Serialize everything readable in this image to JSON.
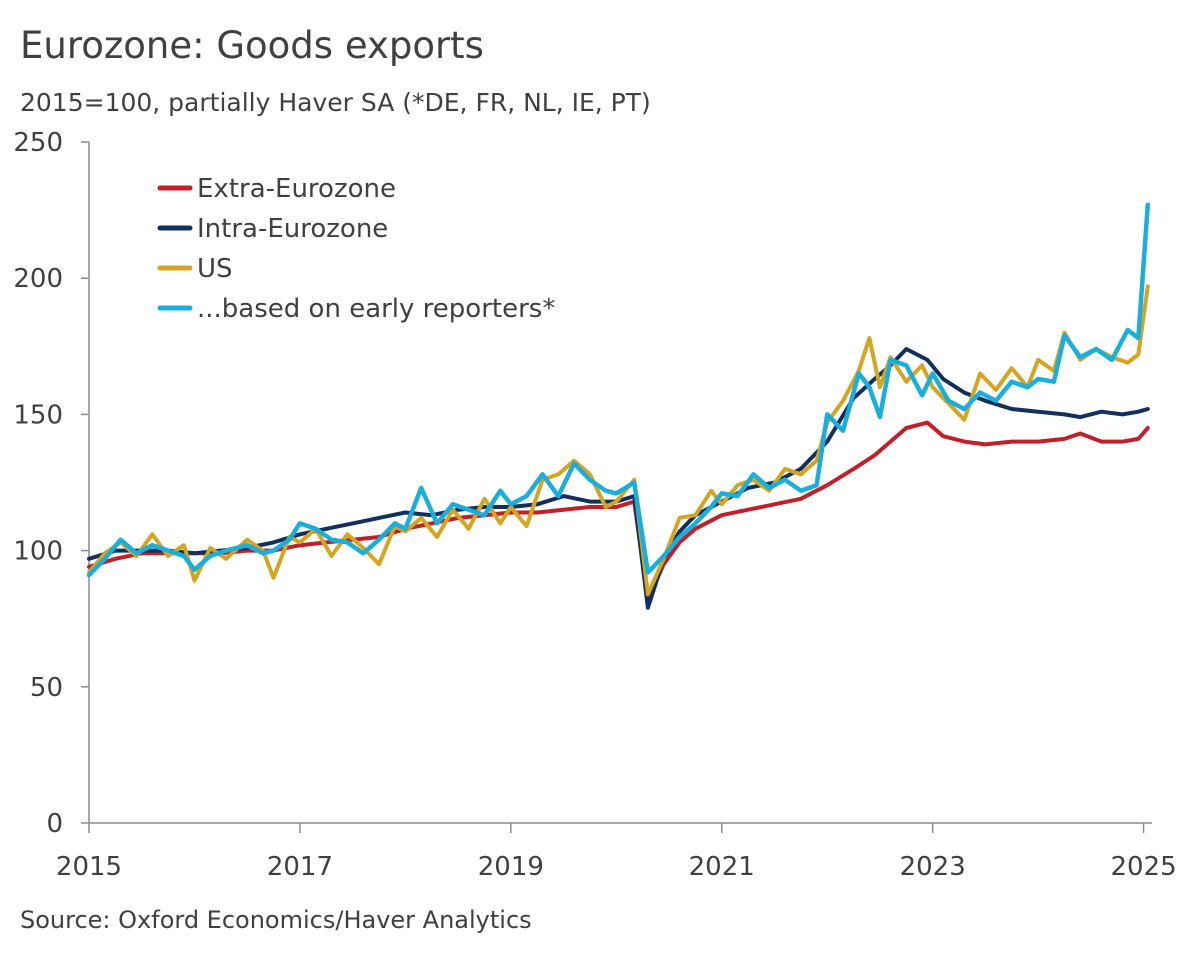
{
  "chart_data": {
    "type": "line",
    "title": "Eurozone: Goods exports",
    "subtitle": "2015=100, partially Haver SA (*DE, FR, NL, IE, PT)",
    "source": "Source: Oxford Economics/Haver Analytics",
    "xlabel": "",
    "ylabel": "",
    "xlim": [
      2015.0,
      2025.08
    ],
    "ylim": [
      0,
      250
    ],
    "y_ticks": [
      0,
      50,
      100,
      150,
      200,
      250
    ],
    "x_ticks": [
      2015,
      2017,
      2019,
      2021,
      2023,
      2025
    ],
    "x_tick_labels": [
      "2015",
      "2017",
      "2019",
      "2021",
      "2023",
      "2025"
    ],
    "grid": false,
    "legend_position": "top-left",
    "series": [
      {
        "name": "Extra-Eurozone",
        "color": "#C0202A",
        "points": [
          [
            2015.0,
            94
          ],
          [
            2015.25,
            97
          ],
          [
            2015.5,
            99
          ],
          [
            2015.75,
            99
          ],
          [
            2016.0,
            99
          ],
          [
            2016.25,
            99
          ],
          [
            2016.5,
            100
          ],
          [
            2016.75,
            100
          ],
          [
            2017.0,
            102
          ],
          [
            2017.25,
            103
          ],
          [
            2017.5,
            104
          ],
          [
            2017.75,
            105
          ],
          [
            2018.0,
            108
          ],
          [
            2018.25,
            110
          ],
          [
            2018.5,
            112
          ],
          [
            2018.75,
            113
          ],
          [
            2019.0,
            114
          ],
          [
            2019.25,
            114
          ],
          [
            2019.5,
            115
          ],
          [
            2019.75,
            116
          ],
          [
            2020.0,
            116
          ],
          [
            2020.17,
            118
          ],
          [
            2020.3,
            82
          ],
          [
            2020.45,
            95
          ],
          [
            2020.6,
            103
          ],
          [
            2020.75,
            108
          ],
          [
            2021.0,
            113
          ],
          [
            2021.25,
            115
          ],
          [
            2021.5,
            117
          ],
          [
            2021.75,
            119
          ],
          [
            2022.0,
            124
          ],
          [
            2022.25,
            130
          ],
          [
            2022.45,
            135
          ],
          [
            2022.6,
            140
          ],
          [
            2022.75,
            145
          ],
          [
            2022.95,
            147
          ],
          [
            2023.1,
            142
          ],
          [
            2023.3,
            140
          ],
          [
            2023.5,
            139
          ],
          [
            2023.75,
            140
          ],
          [
            2024.0,
            140
          ],
          [
            2024.25,
            141
          ],
          [
            2024.4,
            143
          ],
          [
            2024.6,
            140
          ],
          [
            2024.8,
            140
          ],
          [
            2024.95,
            141
          ],
          [
            2025.04,
            145
          ]
        ]
      },
      {
        "name": "Intra-Eurozone",
        "color": "#12305E",
        "points": [
          [
            2015.0,
            97
          ],
          [
            2015.25,
            100
          ],
          [
            2015.5,
            100
          ],
          [
            2015.75,
            100
          ],
          [
            2016.0,
            99
          ],
          [
            2016.25,
            100
          ],
          [
            2016.5,
            101
          ],
          [
            2016.75,
            103
          ],
          [
            2017.0,
            106
          ],
          [
            2017.25,
            108
          ],
          [
            2017.5,
            110
          ],
          [
            2017.75,
            112
          ],
          [
            2018.0,
            114
          ],
          [
            2018.25,
            113
          ],
          [
            2018.5,
            115
          ],
          [
            2018.75,
            116
          ],
          [
            2019.0,
            116
          ],
          [
            2019.25,
            117
          ],
          [
            2019.5,
            120
          ],
          [
            2019.75,
            118
          ],
          [
            2020.0,
            118
          ],
          [
            2020.17,
            120
          ],
          [
            2020.3,
            79
          ],
          [
            2020.45,
            97
          ],
          [
            2020.6,
            107
          ],
          [
            2020.75,
            113
          ],
          [
            2021.0,
            118
          ],
          [
            2021.25,
            123
          ],
          [
            2021.5,
            125
          ],
          [
            2021.75,
            130
          ],
          [
            2022.0,
            140
          ],
          [
            2022.25,
            156
          ],
          [
            2022.45,
            163
          ],
          [
            2022.6,
            168
          ],
          [
            2022.75,
            174
          ],
          [
            2022.95,
            170
          ],
          [
            2023.1,
            163
          ],
          [
            2023.3,
            158
          ],
          [
            2023.5,
            155
          ],
          [
            2023.75,
            152
          ],
          [
            2024.0,
            151
          ],
          [
            2024.25,
            150
          ],
          [
            2024.4,
            149
          ],
          [
            2024.6,
            151
          ],
          [
            2024.8,
            150
          ],
          [
            2024.95,
            151
          ],
          [
            2025.04,
            152
          ]
        ]
      },
      {
        "name": "US",
        "color": "#D4A520",
        "points": [
          [
            2015.0,
            92
          ],
          [
            2015.15,
            99
          ],
          [
            2015.3,
            103
          ],
          [
            2015.45,
            98
          ],
          [
            2015.6,
            106
          ],
          [
            2015.75,
            98
          ],
          [
            2015.9,
            102
          ],
          [
            2016.0,
            89
          ],
          [
            2016.15,
            101
          ],
          [
            2016.3,
            97
          ],
          [
            2016.5,
            104
          ],
          [
            2016.65,
            100
          ],
          [
            2016.75,
            90
          ],
          [
            2016.9,
            105
          ],
          [
            2017.0,
            103
          ],
          [
            2017.15,
            108
          ],
          [
            2017.3,
            98
          ],
          [
            2017.45,
            106
          ],
          [
            2017.6,
            101
          ],
          [
            2017.75,
            95
          ],
          [
            2017.9,
            109
          ],
          [
            2018.0,
            107
          ],
          [
            2018.15,
            112
          ],
          [
            2018.3,
            105
          ],
          [
            2018.45,
            115
          ],
          [
            2018.6,
            108
          ],
          [
            2018.75,
            119
          ],
          [
            2018.9,
            110
          ],
          [
            2019.0,
            116
          ],
          [
            2019.15,
            109
          ],
          [
            2019.3,
            126
          ],
          [
            2019.45,
            128
          ],
          [
            2019.6,
            133
          ],
          [
            2019.75,
            128
          ],
          [
            2019.9,
            116
          ],
          [
            2020.0,
            118
          ],
          [
            2020.17,
            126
          ],
          [
            2020.3,
            84
          ],
          [
            2020.45,
            97
          ],
          [
            2020.6,
            112
          ],
          [
            2020.75,
            113
          ],
          [
            2020.9,
            122
          ],
          [
            2021.0,
            117
          ],
          [
            2021.15,
            124
          ],
          [
            2021.3,
            126
          ],
          [
            2021.45,
            122
          ],
          [
            2021.6,
            130
          ],
          [
            2021.75,
            128
          ],
          [
            2021.9,
            133
          ],
          [
            2022.0,
            147
          ],
          [
            2022.15,
            155
          ],
          [
            2022.3,
            166
          ],
          [
            2022.4,
            178
          ],
          [
            2022.5,
            160
          ],
          [
            2022.6,
            171
          ],
          [
            2022.75,
            162
          ],
          [
            2022.9,
            168
          ],
          [
            2023.0,
            160
          ],
          [
            2023.15,
            154
          ],
          [
            2023.3,
            148
          ],
          [
            2023.45,
            165
          ],
          [
            2023.6,
            159
          ],
          [
            2023.75,
            167
          ],
          [
            2023.9,
            160
          ],
          [
            2024.0,
            170
          ],
          [
            2024.15,
            166
          ],
          [
            2024.25,
            180
          ],
          [
            2024.4,
            170
          ],
          [
            2024.55,
            174
          ],
          [
            2024.7,
            171
          ],
          [
            2024.85,
            169
          ],
          [
            2024.95,
            172
          ],
          [
            2025.04,
            197
          ]
        ]
      },
      {
        "name": "...based on early reporters*",
        "color": "#1AAEDC",
        "points": [
          [
            2015.0,
            91
          ],
          [
            2015.15,
            97
          ],
          [
            2015.3,
            104
          ],
          [
            2015.45,
            99
          ],
          [
            2015.6,
            102
          ],
          [
            2015.75,
            100
          ],
          [
            2015.9,
            98
          ],
          [
            2016.0,
            93
          ],
          [
            2016.15,
            98
          ],
          [
            2016.3,
            100
          ],
          [
            2016.5,
            102
          ],
          [
            2016.65,
            99
          ],
          [
            2016.75,
            100
          ],
          [
            2016.9,
            104
          ],
          [
            2017.0,
            110
          ],
          [
            2017.15,
            108
          ],
          [
            2017.3,
            104
          ],
          [
            2017.45,
            103
          ],
          [
            2017.6,
            99
          ],
          [
            2017.75,
            104
          ],
          [
            2017.9,
            110
          ],
          [
            2018.0,
            108
          ],
          [
            2018.15,
            123
          ],
          [
            2018.3,
            110
          ],
          [
            2018.45,
            117
          ],
          [
            2018.6,
            115
          ],
          [
            2018.75,
            113
          ],
          [
            2018.9,
            122
          ],
          [
            2019.0,
            117
          ],
          [
            2019.15,
            120
          ],
          [
            2019.3,
            128
          ],
          [
            2019.45,
            120
          ],
          [
            2019.6,
            132
          ],
          [
            2019.75,
            126
          ],
          [
            2019.9,
            122
          ],
          [
            2020.0,
            121
          ],
          [
            2020.17,
            125
          ],
          [
            2020.3,
            92
          ],
          [
            2020.45,
            98
          ],
          [
            2020.6,
            105
          ],
          [
            2020.75,
            110
          ],
          [
            2020.9,
            116
          ],
          [
            2021.0,
            121
          ],
          [
            2021.15,
            120
          ],
          [
            2021.3,
            128
          ],
          [
            2021.45,
            123
          ],
          [
            2021.6,
            126
          ],
          [
            2021.75,
            122
          ],
          [
            2021.9,
            124
          ],
          [
            2022.0,
            150
          ],
          [
            2022.15,
            144
          ],
          [
            2022.3,
            165
          ],
          [
            2022.4,
            160
          ],
          [
            2022.5,
            149
          ],
          [
            2022.6,
            170
          ],
          [
            2022.75,
            168
          ],
          [
            2022.9,
            157
          ],
          [
            2023.0,
            165
          ],
          [
            2023.15,
            155
          ],
          [
            2023.3,
            152
          ],
          [
            2023.45,
            158
          ],
          [
            2023.6,
            155
          ],
          [
            2023.75,
            162
          ],
          [
            2023.9,
            160
          ],
          [
            2024.0,
            163
          ],
          [
            2024.15,
            162
          ],
          [
            2024.25,
            179
          ],
          [
            2024.4,
            171
          ],
          [
            2024.55,
            174
          ],
          [
            2024.7,
            170
          ],
          [
            2024.85,
            181
          ],
          [
            2024.95,
            178
          ],
          [
            2025.04,
            227
          ]
        ]
      }
    ]
  }
}
